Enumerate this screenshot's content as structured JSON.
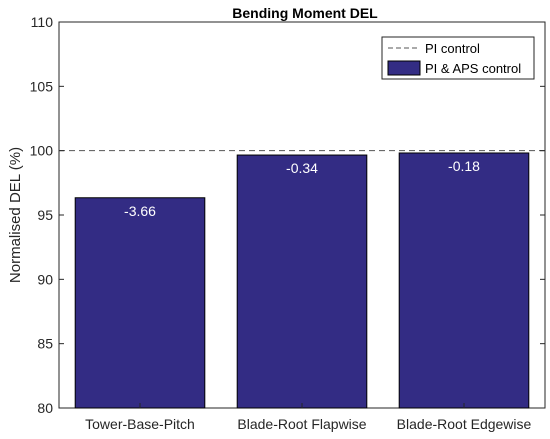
{
  "chart_data": {
    "type": "bar",
    "title": "Bending Moment DEL",
    "xlabel": "",
    "ylabel": "Normalised DEL (%)",
    "categories": [
      "Tower-Base-Pitch",
      "Blade-Root Flapwise",
      "Blade-Root Edgewise"
    ],
    "series": [
      {
        "name": "PI & APS control",
        "values": [
          96.34,
          99.66,
          99.82
        ],
        "labels": [
          "-3.66",
          "-0.34",
          "-0.18"
        ],
        "color": "#332c84"
      }
    ],
    "reference_lines": [
      {
        "name": "PI control",
        "value": 100,
        "style": "dashed",
        "color": "#555555"
      }
    ],
    "ylim": [
      80,
      110
    ],
    "yticks": [
      "80",
      "85",
      "90",
      "95",
      "100",
      "105",
      "110"
    ],
    "grid": false,
    "legend_position": "top-right"
  }
}
